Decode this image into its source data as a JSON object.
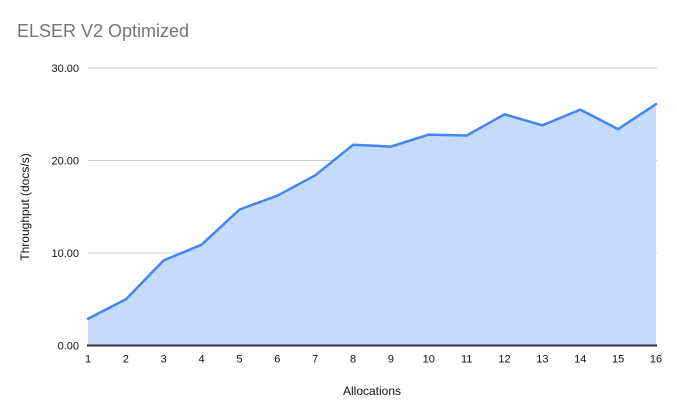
{
  "page": {
    "background": "#ffffff"
  },
  "chart_data": {
    "type": "area",
    "title": "ELSER V2 Optimized",
    "xlabel": "Allocations",
    "ylabel": "Throughput (docs/s)",
    "categories": [
      "1",
      "2",
      "3",
      "4",
      "5",
      "6",
      "7",
      "8",
      "9",
      "10",
      "11",
      "12",
      "13",
      "14",
      "15",
      "16"
    ],
    "series": [
      {
        "name": "Throughput (docs/s)",
        "values": [
          2.9,
          5.0,
          9.2,
          10.9,
          14.7,
          16.2,
          18.4,
          21.7,
          21.5,
          22.8,
          22.7,
          25.0,
          23.8,
          25.5,
          23.4,
          26.1
        ]
      }
    ],
    "ylim": [
      0,
      30
    ],
    "yticks": [
      {
        "value": 0,
        "label": "0.00"
      },
      {
        "value": 10,
        "label": "10.00"
      },
      {
        "value": 20,
        "label": "20.00"
      },
      {
        "value": 30,
        "label": "30.00"
      }
    ],
    "grid": "horizontal",
    "legend": "none",
    "colors": {
      "line": "#4285f4",
      "fill": "#c6dafc",
      "axis": "#333333",
      "gridline": "#cccccc",
      "title_text": "#757575",
      "label_text": "#111111"
    }
  }
}
